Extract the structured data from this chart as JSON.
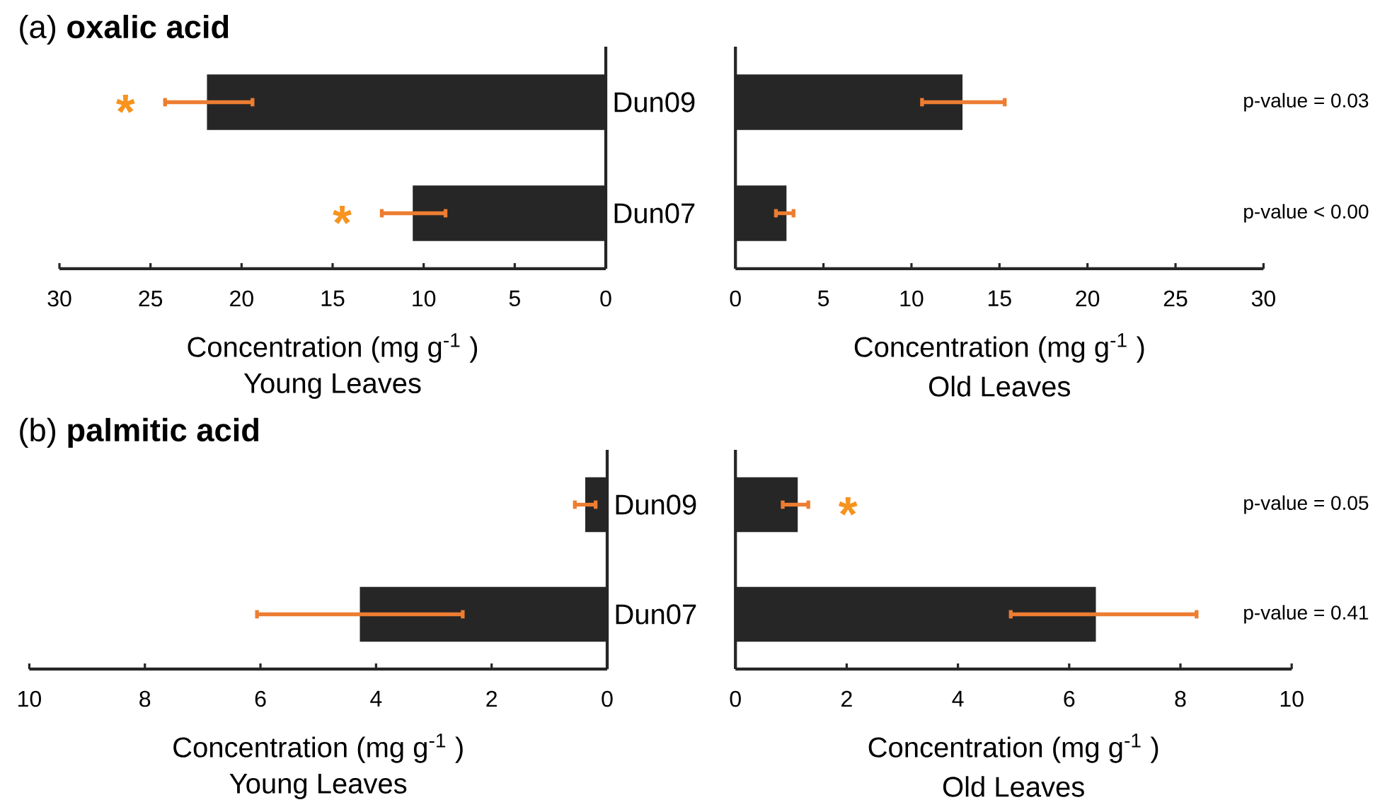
{
  "chart_data": [
    {
      "type": "bar",
      "orientation": "horizontal",
      "title": "(a) **oxalic acid**",
      "xlabel": "Concentration (mg g$^{-1}$ )",
      "subtitle": "Young Leaves",
      "categories": [
        "Dun09",
        "Dun07"
      ],
      "values": [
        21.9,
        10.6
      ],
      "errors": [
        [
          19.4,
          24.2
        ],
        [
          8.8,
          12.3
        ]
      ],
      "color": "#262626",
      "xlim": [
        30,
        0
      ],
      "xticks": [
        30,
        25,
        20,
        15,
        10,
        5,
        0
      ],
      "annotations": [
        "*",
        "*"
      ]
    },
    {
      "type": "bar",
      "orientation": "horizontal",
      "xlabel": "Concentration (mg g$^{-1}$ )",
      "subtitle": "Old Leaves",
      "categories": [
        null,
        null
      ],
      "values": [
        12.9,
        2.9
      ],
      "errors": [
        [
          10.6,
          15.3
        ],
        [
          2.3,
          3.3
        ]
      ],
      "color": "#262626",
      "xlim": [
        0,
        30
      ],
      "xticks": [
        0,
        5,
        10,
        15,
        20,
        25,
        30
      ],
      "annotations": [
        "p-value = 0.03",
        "p-value < 0.00"
      ]
    },
    {
      "type": "bar",
      "orientation": "horizontal",
      "title": "(b) **palmitic acid**",
      "xlabel": "Concentration (mg g$^{-1}$ )",
      "subtitle": "Young Leaves",
      "categories": [
        "Dun09",
        "Dun07"
      ],
      "values": [
        0.38,
        4.28
      ],
      "errors": [
        [
          0.2,
          0.56
        ],
        [
          2.5,
          6.06
        ]
      ],
      "color": "#262626",
      "xlim": [
        10,
        0
      ],
      "xticks": [
        10,
        8,
        6,
        4,
        2,
        0
      ]
    },
    {
      "type": "bar",
      "orientation": "horizontal",
      "xlabel": "Concentration (mg g$^{-1}$ )",
      "subtitle": "Old Leaves",
      "categories": [
        null,
        null
      ],
      "values": [
        1.12,
        6.48
      ],
      "errors": [
        [
          0.85,
          1.31
        ],
        [
          4.95,
          8.29
        ]
      ],
      "color": "#262626",
      "xlim": [
        0,
        10
      ],
      "xticks": [
        0,
        2,
        4,
        6,
        8,
        10
      ],
      "annotations": [
        "p-value = 0.05",
        "p-value = 0.41",
        "*"
      ]
    }
  ]
}
